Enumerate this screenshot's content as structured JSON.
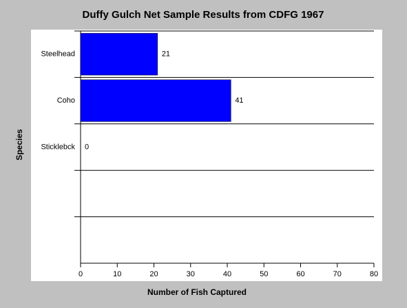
{
  "chart_data": {
    "type": "hbar",
    "title": "Duffy Gulch Net Sample Results from CDFG 1967",
    "xlabel": "Number of Fish Captured",
    "ylabel": "Species",
    "categories": [
      "Steelhead",
      "Coho",
      "Sticklebck",
      null,
      null
    ],
    "values": [
      21,
      41,
      0,
      null,
      null
    ],
    "color": "#0000ff",
    "xlim": [
      0,
      80
    ],
    "xticks": [
      0,
      10,
      20,
      30,
      40,
      50,
      60,
      70,
      80
    ]
  }
}
